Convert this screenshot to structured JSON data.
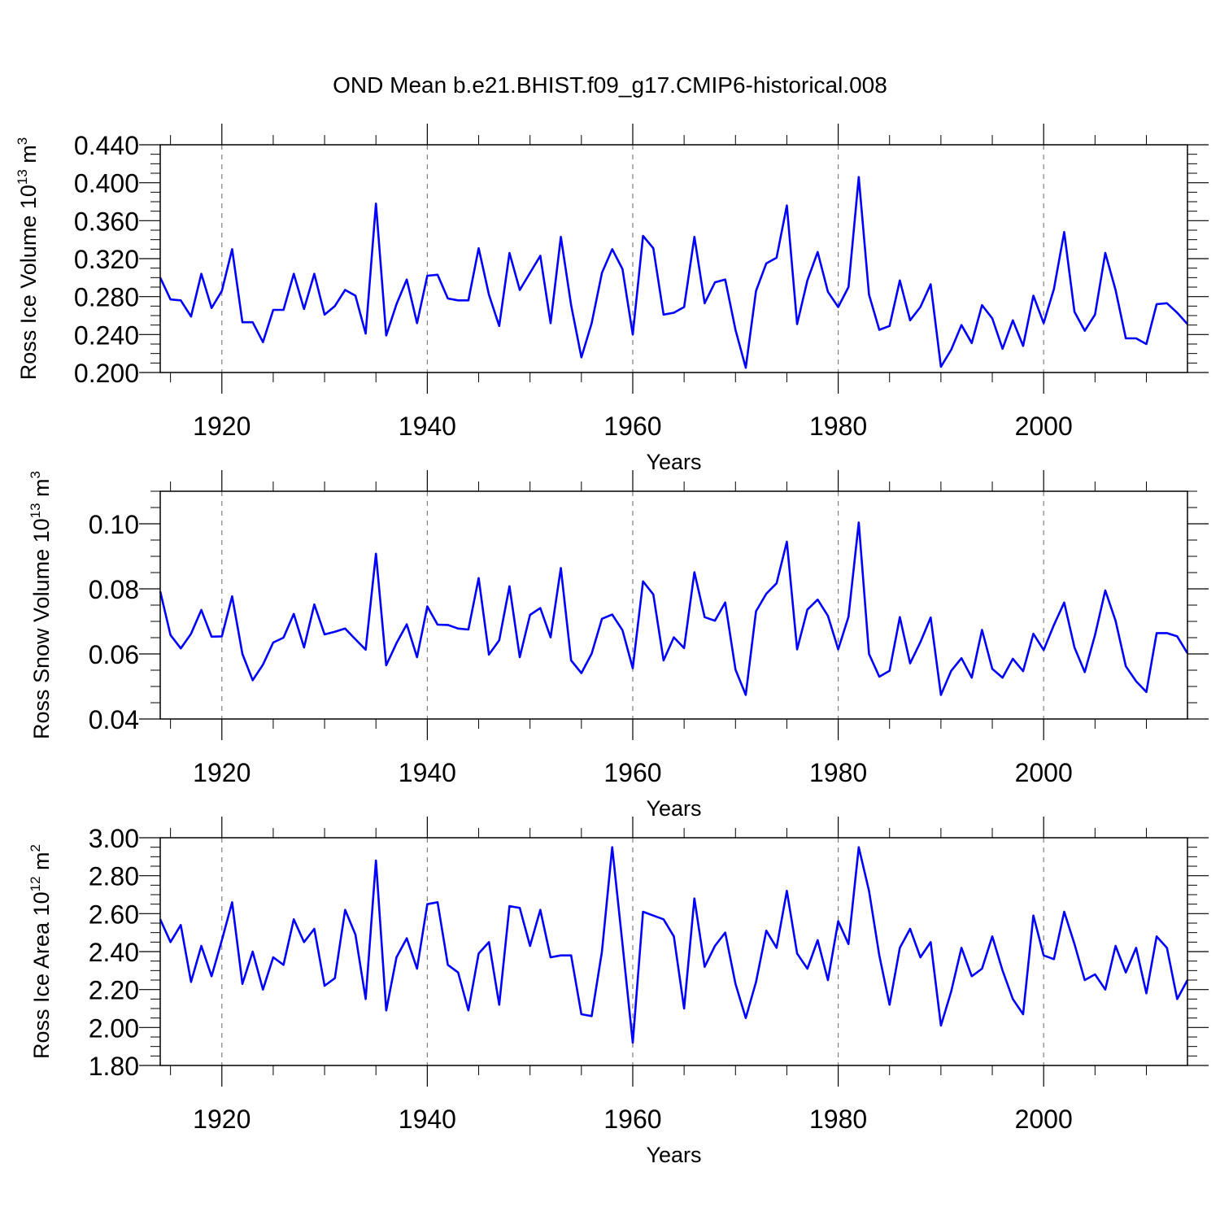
{
  "title": "OND Mean b.e21.BHIST.f09_g17.CMIP6-historical.008",
  "colors": {
    "line": "#0000ff",
    "axis": "#000000",
    "grid": "#808080"
  },
  "chart_data": [
    {
      "type": "line",
      "id": "ice-volume",
      "xlabel": "Years",
      "ylabel_main": "Ross Ice Volume 10",
      "ylabel_exp": "13",
      "ylabel_unit": " m",
      "ylabel_unit_exp": "3",
      "xlim": [
        1914,
        2014
      ],
      "ylim": [
        0.2,
        0.44
      ],
      "x_ticks": [
        1920,
        1940,
        1960,
        1980,
        2000
      ],
      "x_tick_labels": [
        "1920",
        "1940",
        "1960",
        "1980",
        "2000"
      ],
      "y_ticks": [
        0.2,
        0.24,
        0.28,
        0.32,
        0.36,
        0.4,
        0.44
      ],
      "y_tick_labels": [
        "0.200",
        "0.240",
        "0.280",
        "0.320",
        "0.360",
        "0.400",
        "0.440"
      ],
      "y_minor_step": 0.01,
      "x_minor_step": 5,
      "grid": "vertical-dashed",
      "start_year": 1914,
      "values": [
        0.3,
        0.277,
        0.276,
        0.259,
        0.304,
        0.268,
        0.286,
        0.33,
        0.253,
        0.253,
        0.232,
        0.266,
        0.266,
        0.304,
        0.267,
        0.304,
        0.261,
        0.27,
        0.287,
        0.281,
        0.241,
        0.378,
        0.239,
        0.272,
        0.298,
        0.252,
        0.302,
        0.303,
        0.278,
        0.276,
        0.276,
        0.331,
        0.282,
        0.249,
        0.326,
        0.287,
        0.305,
        0.323,
        0.252,
        0.343,
        0.271,
        0.216,
        0.252,
        0.305,
        0.33,
        0.309,
        0.24,
        0.344,
        0.331,
        0.261,
        0.263,
        0.269,
        0.343,
        0.273,
        0.295,
        0.298,
        0.245,
        0.205,
        0.286,
        0.315,
        0.321,
        0.376,
        0.251,
        0.297,
        0.327,
        0.285,
        0.269,
        0.29,
        0.406,
        0.282,
        0.245,
        0.249,
        0.297,
        0.255,
        0.269,
        0.293,
        0.206,
        0.224,
        0.25,
        0.231,
        0.271,
        0.257,
        0.225,
        0.255,
        0.228,
        0.281,
        0.252,
        0.288,
        0.348,
        0.264,
        0.244,
        0.261,
        0.326,
        0.287,
        0.236,
        0.236,
        0.23,
        0.272,
        0.273,
        0.263,
        0.251
      ]
    },
    {
      "type": "line",
      "id": "snow-volume",
      "xlabel": "Years",
      "ylabel_main": "Ross Snow Volume 10",
      "ylabel_exp": "13",
      "ylabel_unit": " m",
      "ylabel_unit_exp": "3",
      "xlim": [
        1914,
        2014
      ],
      "ylim": [
        0.04,
        0.11
      ],
      "x_ticks": [
        1920,
        1940,
        1960,
        1980,
        2000
      ],
      "x_tick_labels": [
        "1920",
        "1940",
        "1960",
        "1980",
        "2000"
      ],
      "y_ticks": [
        0.04,
        0.06,
        0.08,
        0.1
      ],
      "y_tick_labels": [
        "0.04",
        "0.06",
        "0.08",
        "0.10"
      ],
      "y_minor_step": 0.005,
      "x_minor_step": 5,
      "grid": "vertical-dashed",
      "start_year": 1914,
      "values": [
        0.0792,
        0.0658,
        0.0617,
        0.0662,
        0.0735,
        0.0653,
        0.0654,
        0.0777,
        0.06,
        0.0519,
        0.0567,
        0.0635,
        0.065,
        0.0723,
        0.062,
        0.0752,
        0.066,
        0.0668,
        0.0678,
        0.0645,
        0.0613,
        0.0908,
        0.0565,
        0.0633,
        0.0691,
        0.059,
        0.0746,
        0.069,
        0.0689,
        0.0678,
        0.0675,
        0.0833,
        0.0598,
        0.0642,
        0.0808,
        0.059,
        0.072,
        0.0741,
        0.0651,
        0.0864,
        0.058,
        0.0541,
        0.0601,
        0.0708,
        0.0721,
        0.0673,
        0.0556,
        0.0823,
        0.0783,
        0.058,
        0.0651,
        0.0618,
        0.0851,
        0.0713,
        0.0702,
        0.0758,
        0.0552,
        0.0474,
        0.0731,
        0.0785,
        0.0817,
        0.0945,
        0.0614,
        0.0736,
        0.0767,
        0.0717,
        0.0614,
        0.0714,
        0.1004,
        0.06,
        0.053,
        0.0548,
        0.0713,
        0.0571,
        0.0636,
        0.0712,
        0.0474,
        0.0548,
        0.0587,
        0.0527,
        0.0674,
        0.0554,
        0.0527,
        0.0585,
        0.0547,
        0.0662,
        0.0612,
        0.0689,
        0.0758,
        0.062,
        0.0544,
        0.0658,
        0.0795,
        0.0702,
        0.0562,
        0.0516,
        0.0483,
        0.0664,
        0.0664,
        0.0654,
        0.0602
      ]
    },
    {
      "type": "line",
      "id": "ice-area",
      "xlabel": "Years",
      "ylabel_main": "Ross Ice Area 10",
      "ylabel_exp": "12",
      "ylabel_unit": " m",
      "ylabel_unit_exp": "2",
      "xlim": [
        1914,
        2014
      ],
      "ylim": [
        1.8,
        3.0
      ],
      "x_ticks": [
        1920,
        1940,
        1960,
        1980,
        2000
      ],
      "x_tick_labels": [
        "1920",
        "1940",
        "1960",
        "1980",
        "2000"
      ],
      "y_ticks": [
        1.8,
        2.0,
        2.2,
        2.4,
        2.6,
        2.8,
        3.0
      ],
      "y_tick_labels": [
        "1.80",
        "2.00",
        "2.20",
        "2.40",
        "2.60",
        "2.80",
        "3.00"
      ],
      "y_minor_step": 0.05,
      "x_minor_step": 5,
      "grid": "vertical-dashed",
      "start_year": 1914,
      "values": [
        2.57,
        2.45,
        2.54,
        2.24,
        2.43,
        2.27,
        2.46,
        2.66,
        2.23,
        2.4,
        2.2,
        2.37,
        2.33,
        2.57,
        2.45,
        2.52,
        2.22,
        2.26,
        2.62,
        2.49,
        2.15,
        2.88,
        2.09,
        2.37,
        2.47,
        2.31,
        2.65,
        2.66,
        2.33,
        2.29,
        2.09,
        2.39,
        2.45,
        2.12,
        2.64,
        2.63,
        2.43,
        2.62,
        2.37,
        2.38,
        2.38,
        2.07,
        2.06,
        2.4,
        2.95,
        2.44,
        1.92,
        2.61,
        2.59,
        2.57,
        2.48,
        2.1,
        2.68,
        2.32,
        2.43,
        2.5,
        2.23,
        2.05,
        2.24,
        2.51,
        2.42,
        2.72,
        2.39,
        2.31,
        2.46,
        2.25,
        2.56,
        2.44,
        2.95,
        2.72,
        2.38,
        2.12,
        2.42,
        2.52,
        2.37,
        2.45,
        2.01,
        2.19,
        2.42,
        2.27,
        2.31,
        2.48,
        2.3,
        2.15,
        2.07,
        2.59,
        2.38,
        2.36,
        2.61,
        2.44,
        2.25,
        2.28,
        2.2,
        2.43,
        2.29,
        2.42,
        2.18,
        2.48,
        2.42,
        2.15,
        2.25
      ]
    }
  ]
}
